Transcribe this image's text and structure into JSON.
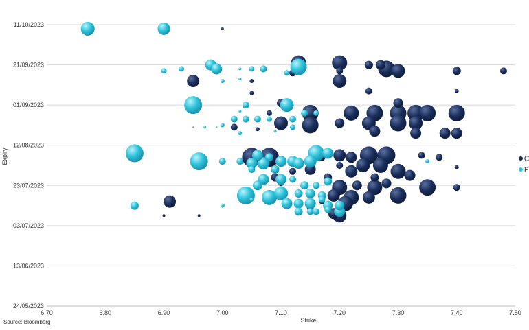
{
  "chart_data": {
    "type": "scatter",
    "subtype": "bubble",
    "title": "",
    "xlabel": "Strike",
    "ylabel": "Expiry",
    "xlim": [
      6.7,
      7.5
    ],
    "x_ticks": [
      "6.70",
      "6.80",
      "6.90",
      "7.00",
      "7.10",
      "7.20",
      "7.30",
      "7.40",
      "7.50"
    ],
    "y_ticks": [
      "24/05/2023",
      "13/06/2023",
      "03/07/2023",
      "23/07/2023",
      "12/08/2023",
      "01/09/2023",
      "21/09/2023",
      "11/10/2023"
    ],
    "ylim_days": [
      0,
      140
    ],
    "ylim_label": [
      "24/05/2023",
      "11/10/2023"
    ],
    "grid": "horizontal",
    "legend_position": "right",
    "colors": {
      "C": "#1a2e5a",
      "P": "#2ec4dc",
      "C_highlight": "#5a6f9f",
      "P_highlight": "#b9f3fb"
    },
    "series": [
      {
        "name": "C",
        "points": [
          [
            7.0,
            138,
            2
          ],
          [
            7.13,
            121,
            11
          ],
          [
            7.2,
            121,
            11
          ],
          [
            7.25,
            120,
            6
          ],
          [
            7.27,
            120,
            7
          ],
          [
            7.28,
            118,
            12
          ],
          [
            7.3,
            117,
            10
          ],
          [
            7.4,
            117,
            6
          ],
          [
            7.48,
            117,
            5
          ],
          [
            7.12,
            116,
            5
          ],
          [
            7.2,
            117,
            5
          ],
          [
            6.95,
            112,
            9
          ],
          [
            7.2,
            112,
            10
          ],
          [
            7.05,
            112,
            3
          ],
          [
            7.25,
            107,
            5
          ],
          [
            7.4,
            107,
            3
          ],
          [
            7.05,
            106,
            3
          ],
          [
            7.1,
            101,
            6
          ],
          [
            7.3,
            101,
            7
          ],
          [
            7.22,
            96,
            11
          ],
          [
            7.26,
            96,
            12
          ],
          [
            7.3,
            96,
            12
          ],
          [
            7.33,
            96,
            12
          ],
          [
            7.35,
            96,
            12
          ],
          [
            7.4,
            96,
            12
          ],
          [
            7.15,
            96,
            12
          ],
          [
            7.08,
            96,
            4
          ],
          [
            7.1,
            91,
            10
          ],
          [
            7.15,
            90,
            12
          ],
          [
            7.2,
            91,
            7
          ],
          [
            7.25,
            91,
            10
          ],
          [
            7.3,
            91,
            12
          ],
          [
            7.33,
            91,
            10
          ],
          [
            7.26,
            87,
            8
          ],
          [
            7.02,
            89,
            5
          ],
          [
            7.06,
            88,
            3
          ],
          [
            7.33,
            86,
            8
          ],
          [
            7.38,
            86,
            8
          ],
          [
            7.4,
            86,
            8
          ],
          [
            7.18,
            77,
            5
          ],
          [
            7.2,
            75,
            9
          ],
          [
            7.25,
            75,
            13
          ],
          [
            7.28,
            75,
            13
          ],
          [
            7.22,
            74,
            8
          ],
          [
            7.17,
            74,
            5
          ],
          [
            7.34,
            75,
            5
          ],
          [
            7.37,
            74,
            5
          ],
          [
            7.05,
            74,
            14
          ],
          [
            7.08,
            74,
            14
          ],
          [
            7.1,
            72,
            5
          ],
          [
            7.2,
            70,
            5
          ],
          [
            7.24,
            70,
            10
          ],
          [
            7.27,
            70,
            11
          ],
          [
            7.15,
            68,
            8
          ],
          [
            7.22,
            67,
            9
          ],
          [
            7.3,
            67,
            11
          ],
          [
            7.4,
            69,
            3
          ],
          [
            7.09,
            64,
            6
          ],
          [
            7.12,
            67,
            5
          ],
          [
            7.18,
            64,
            6
          ],
          [
            7.26,
            64,
            6
          ],
          [
            7.32,
            65,
            8
          ],
          [
            7.1,
            61,
            4
          ],
          [
            7.2,
            59,
            11
          ],
          [
            7.23,
            60,
            7
          ],
          [
            7.28,
            61,
            7
          ],
          [
            7.35,
            59,
            12
          ],
          [
            7.4,
            59,
            5
          ],
          [
            7.15,
            57,
            4
          ],
          [
            7.26,
            59,
            11
          ],
          [
            7.19,
            55,
            9
          ],
          [
            7.22,
            54,
            11
          ],
          [
            7.25,
            54,
            9
          ],
          [
            7.3,
            55,
            12
          ],
          [
            7.17,
            52,
            4
          ],
          [
            6.91,
            52,
            9
          ],
          [
            7.21,
            51,
            11
          ],
          [
            7.18,
            50,
            4
          ],
          [
            7.15,
            49,
            5
          ],
          [
            6.9,
            45,
            2
          ],
          [
            6.96,
            45,
            2
          ],
          [
            7.19,
            46,
            8
          ],
          [
            7.2,
            45,
            10
          ]
        ]
      },
      {
        "name": "P",
        "points": [
          [
            6.77,
            138,
            10
          ],
          [
            6.9,
            138,
            9
          ],
          [
            6.98,
            120,
            8
          ],
          [
            6.99,
            118,
            8
          ],
          [
            7.07,
            118,
            5
          ],
          [
            7.13,
            119,
            12
          ],
          [
            6.93,
            118,
            4
          ],
          [
            6.9,
            117,
            4
          ],
          [
            7.05,
            118,
            4
          ],
          [
            7.11,
            116,
            4
          ],
          [
            7.03,
            118,
            2
          ],
          [
            7.03,
            113,
            2
          ],
          [
            7.0,
            112,
            3
          ],
          [
            6.95,
            100,
            13
          ],
          [
            7.11,
            100,
            10
          ],
          [
            7.04,
            100,
            5
          ],
          [
            7.03,
            97,
            2
          ],
          [
            7.02,
            93,
            5
          ],
          [
            7.04,
            93,
            5
          ],
          [
            7.06,
            93,
            5
          ],
          [
            7.08,
            93,
            4
          ],
          [
            7.12,
            93,
            5
          ],
          [
            7.14,
            96,
            5
          ],
          [
            7.16,
            96,
            4
          ],
          [
            7.12,
            89,
            4
          ],
          [
            7.0,
            90,
            3
          ],
          [
            7.03,
            86,
            3
          ],
          [
            6.85,
            76,
            13
          ],
          [
            6.96,
            72,
            13
          ],
          [
            7.0,
            72,
            5
          ],
          [
            7.06,
            75,
            8
          ],
          [
            7.03,
            72,
            5
          ],
          [
            7.05,
            71,
            8
          ],
          [
            7.07,
            71,
            9
          ],
          [
            7.1,
            72,
            8
          ],
          [
            7.12,
            72,
            8
          ],
          [
            7.15,
            72,
            9
          ],
          [
            7.16,
            76,
            12
          ],
          [
            7.18,
            76,
            8
          ],
          [
            7.08,
            74,
            6
          ],
          [
            7.05,
            68,
            5
          ],
          [
            7.09,
            68,
            6
          ],
          [
            7.13,
            71,
            8
          ],
          [
            7.35,
            72,
            3
          ],
          [
            7.06,
            60,
            7
          ],
          [
            7.07,
            63,
            8
          ],
          [
            7.1,
            63,
            8
          ],
          [
            7.12,
            63,
            5
          ],
          [
            7.14,
            60,
            6
          ],
          [
            7.16,
            60,
            5
          ],
          [
            7.18,
            62,
            6
          ],
          [
            7.04,
            55,
            13
          ],
          [
            7.08,
            54,
            11
          ],
          [
            7.1,
            56,
            10
          ],
          [
            7.13,
            56,
            6
          ],
          [
            7.15,
            56,
            7
          ],
          [
            7.17,
            55,
            6
          ],
          [
            7.11,
            51,
            8
          ],
          [
            7.13,
            51,
            7
          ],
          [
            7.15,
            51,
            8
          ],
          [
            7.18,
            50,
            7
          ],
          [
            7.2,
            50,
            7
          ],
          [
            7.13,
            47,
            6
          ],
          [
            7.15,
            47,
            5
          ],
          [
            7.18,
            48,
            5
          ],
          [
            7.2,
            47,
            8
          ],
          [
            7.16,
            47,
            5
          ],
          [
            7.17,
            53,
            5
          ],
          [
            6.85,
            50,
            6
          ],
          [
            7.0,
            50,
            3
          ],
          [
            7.05,
            53,
            3
          ],
          [
            6.97,
            89,
            2
          ],
          [
            6.95,
            89,
            1
          ],
          [
            6.99,
            89,
            1
          ],
          [
            7.09,
            87,
            2
          ]
        ]
      }
    ]
  },
  "legend": {
    "items": [
      {
        "label": "C",
        "color": "#1a2e5a"
      },
      {
        "label": "P",
        "color": "#2ec4dc"
      }
    ]
  },
  "source": "Source: Bloomberg"
}
